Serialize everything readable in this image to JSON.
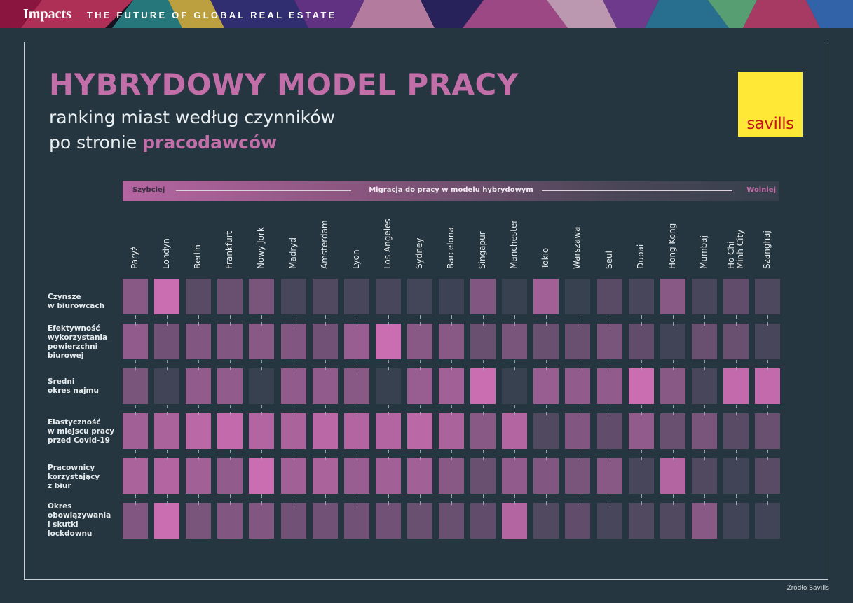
{
  "header": {
    "brand": "Impacts",
    "tagline": "THE FUTURE OF GLOBAL REAL ESTATE"
  },
  "logo": {
    "text": "savills",
    "background": "#ffe936",
    "color": "#c4161c"
  },
  "chart_data": {
    "type": "heatmap",
    "title": "HYBRYDOWY MODEL PRACY",
    "subtitle_line1": "ranking miast według czynników",
    "subtitle_line2_prefix": "po stronie ",
    "subtitle_line2_highlight": "pracodawców",
    "scale": {
      "left": "Szybciej",
      "center": "Migracja do pracy w modelu hybrydowym",
      "right": "Wolniej"
    },
    "columns": [
      "Paryż",
      "Londyn",
      "Berlin",
      "Frankfurt",
      "Nowy Jork",
      "Madryd",
      "Amsterdam",
      "Lyon",
      "Los Angeles",
      "Sydney",
      "Barcelona",
      "Singapur",
      "Manchester",
      "Tokio",
      "Warszawa",
      "Seul",
      "Dubai",
      "Hong Kong",
      "Mumbaj",
      "Ho Chi Minh City",
      "Szanghaj"
    ],
    "rows": [
      "Czynsze\nw biurowcach",
      "Efektywność\nwykorzystania\npowierzchni\nbiurowej",
      "Średni\nokres najmu",
      "Elastyczność\nw miejscu pracy\nprzed Covid-19",
      "Pracownicy\nkorzystający\nz biur",
      "Okres\nobowiązywania\ni skutki\nlockdownu"
    ],
    "intensity_scale": "0 = lowest (dark slate), 1 = highest (bright magenta)",
    "values": [
      [
        0.55,
        0.95,
        0.25,
        0.35,
        0.45,
        0.15,
        0.2,
        0.15,
        0.15,
        0.12,
        0.08,
        0.5,
        0.05,
        0.7,
        0.05,
        0.25,
        0.15,
        0.55,
        0.15,
        0.3,
        0.18
      ],
      [
        0.6,
        0.4,
        0.5,
        0.5,
        0.55,
        0.5,
        0.4,
        0.65,
        0.95,
        0.55,
        0.55,
        0.35,
        0.45,
        0.35,
        0.35,
        0.45,
        0.3,
        0.1,
        0.35,
        0.35,
        0.15
      ],
      [
        0.45,
        0.1,
        0.6,
        0.6,
        0.05,
        0.6,
        0.6,
        0.55,
        0.05,
        0.65,
        0.7,
        0.95,
        0.05,
        0.65,
        0.6,
        0.6,
        0.95,
        0.55,
        0.15,
        0.9,
        0.9
      ],
      [
        0.7,
        0.75,
        0.85,
        0.9,
        0.8,
        0.75,
        0.85,
        0.8,
        0.8,
        0.85,
        0.75,
        0.55,
        0.8,
        0.2,
        0.5,
        0.3,
        0.6,
        0.35,
        0.45,
        0.25,
        0.35
      ],
      [
        0.75,
        0.8,
        0.7,
        0.6,
        0.95,
        0.7,
        0.75,
        0.65,
        0.7,
        0.7,
        0.55,
        0.35,
        0.6,
        0.5,
        0.45,
        0.55,
        0.15,
        0.8,
        0.2,
        0.1,
        0.25
      ],
      [
        0.5,
        0.95,
        0.45,
        0.5,
        0.5,
        0.4,
        0.4,
        0.4,
        0.4,
        0.35,
        0.35,
        0.3,
        0.8,
        0.2,
        0.3,
        0.15,
        0.2,
        0.2,
        0.55,
        0.1,
        0.1
      ]
    ],
    "color_low": "#303f4b",
    "color_high": "#d26fb6"
  },
  "source": "Źródło Savills"
}
